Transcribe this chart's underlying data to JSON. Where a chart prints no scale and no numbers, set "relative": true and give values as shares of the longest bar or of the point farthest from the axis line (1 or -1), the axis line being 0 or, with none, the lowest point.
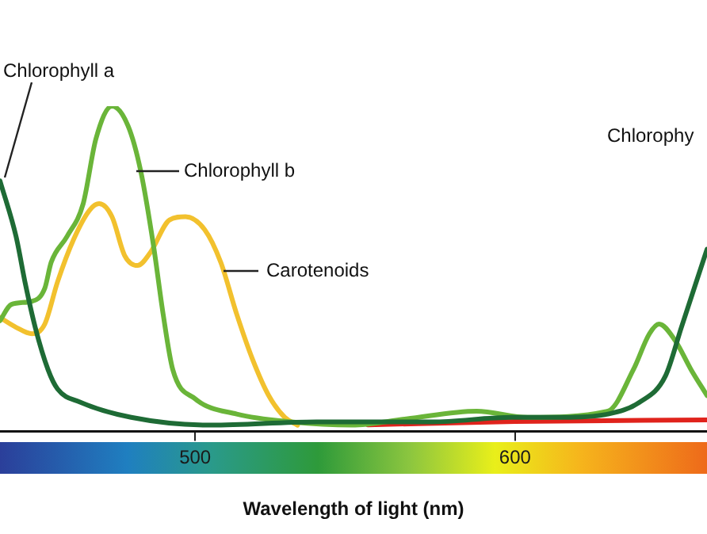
{
  "chart_data": {
    "type": "line",
    "xlabel": "Wavelength of light (nm)",
    "relative": true,
    "xlim": [
      439,
      660
    ],
    "xticks": [
      500,
      600
    ],
    "grid": false,
    "legend": false,
    "marker": "none",
    "line_style": "solid",
    "annotations": [
      "Chlorophy"
    ],
    "series": [
      {
        "name": "Chlorophyll a",
        "color": "#1e6b35",
        "x": [
          439,
          444,
          447,
          450,
          454,
          457,
          464,
          480,
          505,
          538,
          574,
          599,
          615,
          629,
          639,
          647,
          652,
          657,
          660
        ],
        "values": [
          0.77,
          0.6,
          0.45,
          0.32,
          0.19,
          0.13,
          0.09,
          0.043,
          0.019,
          0.029,
          0.029,
          0.043,
          0.043,
          0.053,
          0.09,
          0.17,
          0.32,
          0.47,
          0.56
        ]
      },
      {
        "name": "Chlorophyll b",
        "color": "#6ab539",
        "x": [
          439,
          442.5,
          449,
          453,
          455,
          460,
          465,
          469,
          474,
          479,
          483,
          487,
          490,
          493,
          500,
          513,
          530,
          549,
          566,
          588,
          604,
          629,
          637,
          642,
          645,
          650,
          655,
          660
        ],
        "values": [
          0.34,
          0.39,
          0.4,
          0.44,
          0.52,
          0.6,
          0.7,
          0.9,
          1,
          0.94,
          0.8,
          0.57,
          0.36,
          0.19,
          0.1,
          0.053,
          0.029,
          0.019,
          0.038,
          0.062,
          0.043,
          0.062,
          0.19,
          0.3,
          0.33,
          0.28,
          0.19,
          0.11
        ]
      },
      {
        "name": "Carotenoids",
        "color": "#f2c12e",
        "x": [
          439,
          444,
          449,
          453,
          457,
          462,
          467,
          470,
          474,
          478,
          482,
          486,
          492,
          497,
          503,
          508,
          513,
          518,
          523,
          528,
          532
        ],
        "values": [
          0.35,
          0.32,
          0.3,
          0.33,
          0.46,
          0.59,
          0.68,
          0.7,
          0.66,
          0.54,
          0.51,
          0.55,
          0.65,
          0.66,
          0.62,
          0.52,
          0.36,
          0.22,
          0.11,
          0.043,
          0.019
        ]
      },
      {
        "color": "#e0231c",
        "x": [
          554,
          600,
          660
        ],
        "values": [
          0.02,
          0.03,
          0.035
        ]
      }
    ]
  }
}
